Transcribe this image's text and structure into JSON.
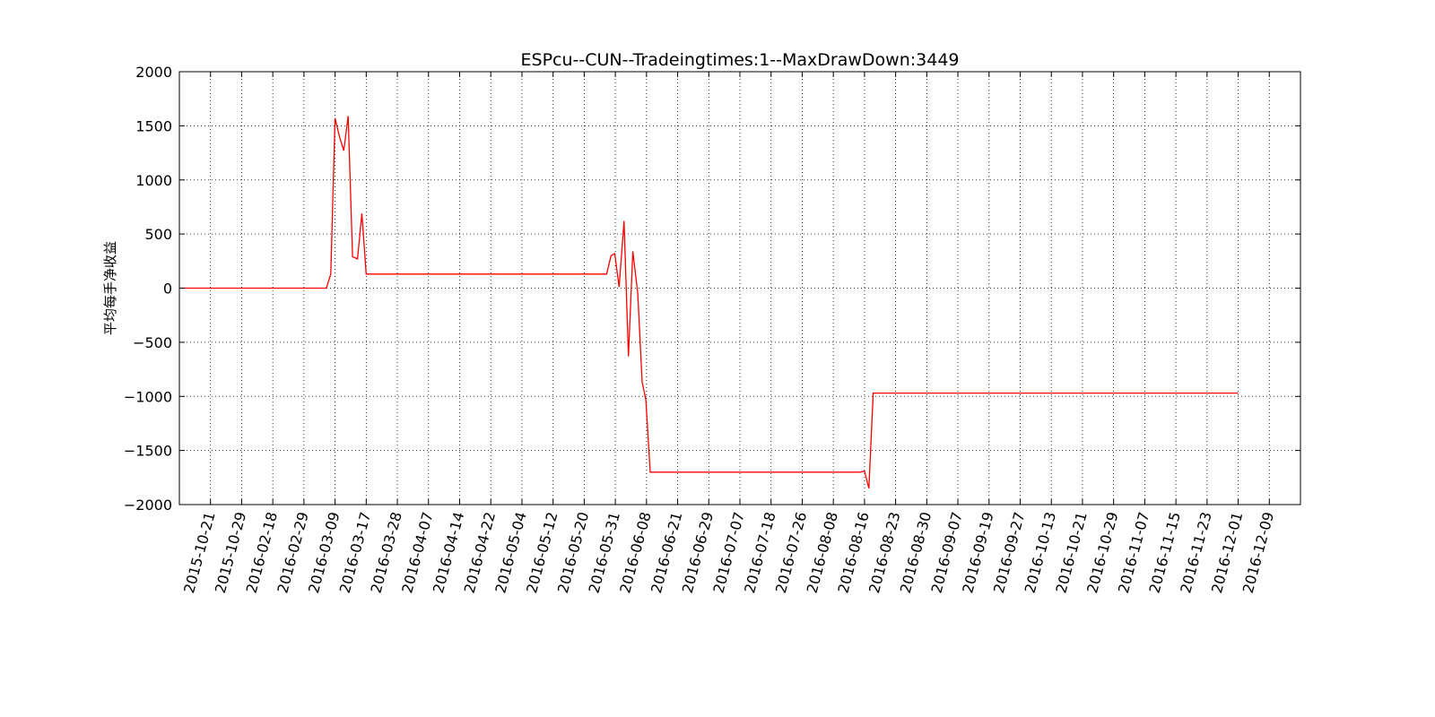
{
  "chart_data": {
    "type": "line",
    "title": "ESPcu--CUN--Tradeingtimes:1--MaxDrawDown:3449",
    "xlabel": "",
    "ylabel": "平均每手净收益",
    "ylim": [
      -2000,
      2000
    ],
    "yticks": [
      2000,
      1500,
      1000,
      500,
      0,
      -500,
      -1000,
      -1500,
      -2000
    ],
    "ytick_labels": [
      "2000",
      "1500",
      "1000",
      "500",
      "0",
      "−500",
      "−1000",
      "−1500",
      "−2000"
    ],
    "grid": true,
    "line_color": "#ff0000",
    "xtick_labels": [
      "2015-10-21",
      "2015-10-29",
      "2016-02-18",
      "2016-02-29",
      "2016-03-09",
      "2016-03-17",
      "2016-03-28",
      "2016-04-07",
      "2016-04-14",
      "2016-04-22",
      "2016-05-04",
      "2016-05-12",
      "2016-05-20",
      "2016-05-31",
      "2016-06-08",
      "2016-06-21",
      "2016-06-29",
      "2016-07-07",
      "2016-07-18",
      "2016-07-26",
      "2016-08-08",
      "2016-08-16",
      "2016-08-23",
      "2016-08-30",
      "2016-09-07",
      "2016-09-19",
      "2016-09-27",
      "2016-10-13",
      "2016-10-21",
      "2016-10-29",
      "2016-11-07",
      "2016-11-15",
      "2016-11-23",
      "2016-12-01",
      "2016-12-09"
    ],
    "x_range": [
      0,
      36
    ],
    "xticks": [
      1,
      2,
      3,
      4,
      5,
      6,
      7,
      8,
      9,
      10,
      11,
      12,
      13,
      14,
      15,
      16,
      17,
      18,
      19,
      20,
      21,
      22,
      23,
      24,
      25,
      26,
      27,
      28,
      29,
      30,
      31,
      32,
      33,
      34,
      35
    ],
    "series": [
      {
        "x": [
          0,
          4.72,
          4.86,
          5.0,
          5.14,
          5.28,
          5.42,
          5.56,
          5.72,
          5.86,
          6.0,
          13.72,
          13.86,
          13.98,
          14.12,
          14.28,
          14.42,
          14.56,
          14.72,
          14.86,
          14.98,
          15.12,
          21.86,
          22.0,
          22.14,
          22.28,
          34.0
        ],
        "y": [
          0,
          0,
          130,
          1570,
          1400,
          1270,
          1590,
          290,
          270,
          690,
          130,
          130,
          300,
          320,
          10,
          620,
          -630,
          340,
          -50,
          -870,
          -1030,
          -1700,
          -1700,
          -1690,
          -1850,
          -970,
          -970
        ]
      }
    ]
  }
}
